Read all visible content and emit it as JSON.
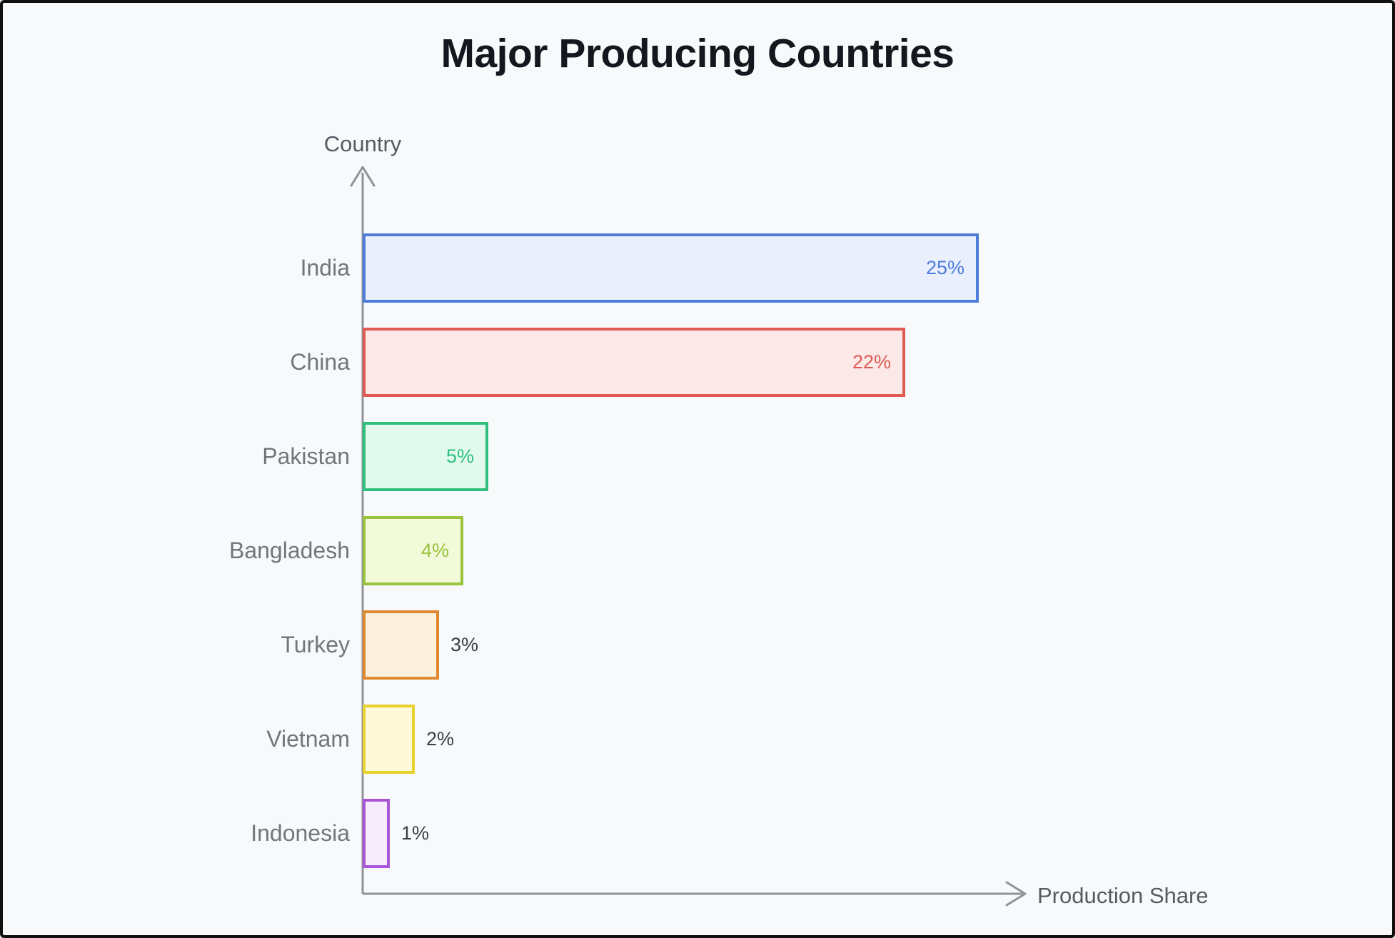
{
  "frame": {
    "background": "#F8F9FB",
    "border_color": "#101010"
  },
  "chart_data": {
    "type": "bar",
    "orientation": "horizontal",
    "title": "Major Producing Countries",
    "xlabel": "Production Share",
    "ylabel": "Country",
    "categories": [
      "India",
      "China",
      "Pakistan",
      "Bangladesh",
      "Turkey",
      "Vietnam",
      "Indonesia"
    ],
    "values": [
      25,
      22,
      5,
      4,
      3,
      2,
      1
    ],
    "unit": "%",
    "value_labels": [
      "25%",
      "22%",
      "5%",
      "4%",
      "3%",
      "2%",
      "1%"
    ],
    "axis_ticks": "none",
    "grid": "off",
    "legend": "none",
    "axis_color": "#8E9299",
    "bar_styles": [
      {
        "border": "#4E7CD9",
        "fill": "#E9EFFC",
        "label_color": "#4E7CD9",
        "label_position": "inside"
      },
      {
        "border": "#DE5A52",
        "fill": "#FBE9E8",
        "label_color": "#DE5A52",
        "label_position": "inside"
      },
      {
        "border": "#2FBF7C",
        "fill": "#E2FAEE",
        "label_color": "#2FBF7C",
        "label_position": "inside"
      },
      {
        "border": "#98C33C",
        "fill": "#F3FADA",
        "label_color": "#98C33C",
        "label_position": "inside"
      },
      {
        "border": "#E1892F",
        "fill": "#FCF0DE",
        "label_color": "#3B4046",
        "label_position": "outside"
      },
      {
        "border": "#E7D22F",
        "fill": "#FDF9D9",
        "label_color": "#3B4046",
        "label_position": "outside"
      },
      {
        "border": "#A855D8",
        "fill": "#F7ECFA",
        "label_color": "#3B4046",
        "label_position": "outside"
      }
    ]
  }
}
